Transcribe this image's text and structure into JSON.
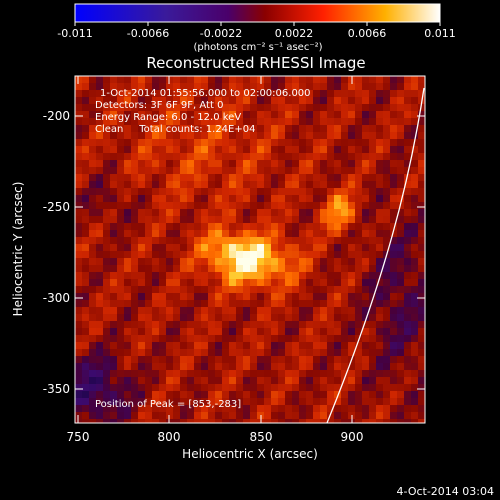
{
  "colorbar": {
    "tick_labels": [
      "-0.011",
      "-0.0066",
      "-0.0022",
      "0.0022",
      "0.0066",
      "0.011"
    ],
    "unit_label": "(photons cm⁻² s⁻¹ asec⁻²)"
  },
  "title": "Reconstructed RHESSI Image",
  "annotations": {
    "time_range": "1-Oct-2014 01:55:56.000 to 02:00:06.000",
    "detectors": "Detectors: 3F 6F 9F, Att 0",
    "energy_range": "Energy Range: 6.0 - 12.0 keV",
    "clean_counts": "Clean     Total counts: 1.24E+04",
    "peak_position": "Position of Peak = [853,-283]"
  },
  "axes": {
    "xlabel": "Heliocentric X (arcsec)",
    "ylabel": "Heliocentric Y (arcsec)",
    "x_ticks": [
      "750",
      "800",
      "850",
      "900"
    ],
    "y_ticks": [
      "-200",
      "-250",
      "-300",
      "-350"
    ],
    "xlim": [
      748,
      940
    ],
    "ylim": [
      -370,
      -175
    ]
  },
  "footer_date": "4-Oct-2014 03:04",
  "colors": {
    "background": "#000000",
    "text": "#ffffff",
    "limb": "#ffffff"
  }
}
